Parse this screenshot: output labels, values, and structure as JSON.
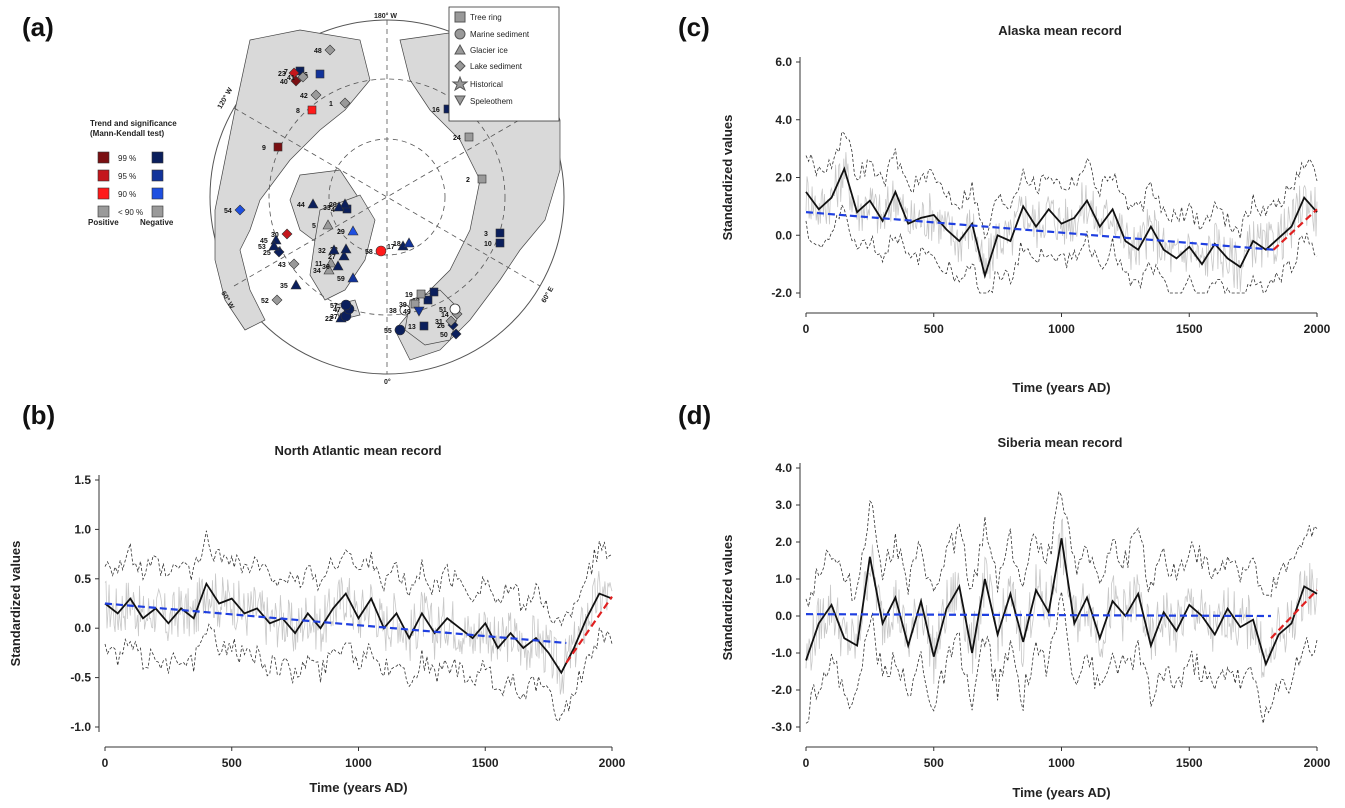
{
  "figure": {
    "panels": [
      {
        "id": "a",
        "letter": "(a)"
      },
      {
        "id": "b",
        "letter": "(b)"
      },
      {
        "id": "c",
        "letter": "(c)"
      },
      {
        "id": "d",
        "letter": "(d)"
      }
    ]
  },
  "map": {
    "legend_archive": [
      "Tree ring",
      "Marine sediment",
      "Glacier ice",
      "Lake sediment",
      "Historical",
      "Speleothem"
    ],
    "trend_legend": {
      "title_line1": "Trend and significance",
      "title_line2": "(Mann-Kendall test)",
      "levels": [
        "99 %",
        "95 %",
        "90 %",
        "< 90 %"
      ],
      "positive_label": "Positive",
      "negative_label": "Negative",
      "positive_colors": [
        "#7a0f12",
        "#c4161c",
        "#ff1a1a",
        "#9a9a9a"
      ],
      "negative_colors": [
        "#0b1f5c",
        "#12339a",
        "#1e4fe0",
        "#9a9a9a"
      ]
    },
    "meridian_labels": {
      "top": "180° W",
      "bottom": "0°",
      "left_upper": "120° W",
      "left_lower": "60° W",
      "right_lower": "60° E"
    },
    "sites": [
      {
        "n": "1",
        "type": "lake",
        "trend": "neg_ns"
      },
      {
        "n": "2",
        "type": "tree",
        "trend": "neg_ns"
      },
      {
        "n": "3",
        "type": "tree",
        "trend": "neg99"
      },
      {
        "n": "4",
        "type": "tree",
        "trend": "neg99"
      },
      {
        "n": "5",
        "type": "glacier",
        "trend": "neg_ns"
      },
      {
        "n": "6",
        "type": "tree",
        "trend": "neg95"
      },
      {
        "n": "7",
        "type": "tree",
        "trend": "neg99"
      },
      {
        "n": "8",
        "type": "tree",
        "trend": "pos90"
      },
      {
        "n": "9",
        "type": "tree",
        "trend": "pos99"
      },
      {
        "n": "10",
        "type": "tree",
        "trend": "neg99"
      },
      {
        "n": "11",
        "type": "glacier",
        "trend": "neg_ns"
      },
      {
        "n": "12",
        "type": "tree",
        "trend": "neg99"
      },
      {
        "n": "13",
        "type": "tree",
        "trend": "neg99"
      },
      {
        "n": "14",
        "type": "lake",
        "trend": "neg_ns"
      },
      {
        "n": "15",
        "type": "tree",
        "trend": "neg99"
      },
      {
        "n": "16",
        "type": "tree",
        "trend": "neg99"
      },
      {
        "n": "17",
        "type": "glacier",
        "trend": "neg99"
      },
      {
        "n": "18",
        "type": "glacier",
        "trend": "neg95"
      },
      {
        "n": "19",
        "type": "tree",
        "trend": "neg_ns"
      },
      {
        "n": "20",
        "type": "glacier",
        "trend": "neg99"
      },
      {
        "n": "22",
        "type": "glacier",
        "trend": "neg99"
      },
      {
        "n": "23",
        "type": "lake",
        "trend": "pos95"
      },
      {
        "n": "24",
        "type": "tree",
        "trend": "neg_ns"
      },
      {
        "n": "25",
        "type": "lake",
        "trend": "neg99"
      },
      {
        "n": "26",
        "type": "lake",
        "trend": "neg99"
      },
      {
        "n": "27",
        "type": "glacier",
        "trend": "neg99"
      },
      {
        "n": "28",
        "type": "glacier",
        "trend": "neg99"
      },
      {
        "n": "29",
        "type": "glacier",
        "trend": "neg90"
      },
      {
        "n": "30",
        "type": "lake",
        "trend": "pos95"
      },
      {
        "n": "31",
        "type": "lake",
        "trend": "neg_ns"
      },
      {
        "n": "32",
        "type": "glacier",
        "trend": "neg99"
      },
      {
        "n": "33",
        "type": "glacier",
        "trend": "neg99"
      },
      {
        "n": "34",
        "type": "glacier",
        "trend": "neg_ns"
      },
      {
        "n": "35",
        "type": "glacier",
        "trend": "neg99"
      },
      {
        "n": "36",
        "type": "glacier",
        "trend": "neg99"
      },
      {
        "n": "37",
        "type": "marine",
        "trend": "neg99"
      },
      {
        "n": "38",
        "type": "historical",
        "trend": "neg_ns"
      },
      {
        "n": "39",
        "type": "tree",
        "trend": "neg_ns"
      },
      {
        "n": "40",
        "type": "lake",
        "trend": "pos99"
      },
      {
        "n": "41",
        "type": "lake",
        "trend": "neg_ns"
      },
      {
        "n": "42",
        "type": "lake",
        "trend": "neg_ns"
      },
      {
        "n": "43",
        "type": "lake",
        "trend": "neg_ns"
      },
      {
        "n": "44",
        "type": "glacier",
        "trend": "neg99"
      },
      {
        "n": "45",
        "type": "glacier",
        "trend": "neg99"
      },
      {
        "n": "47",
        "type": "marine",
        "trend": "neg99"
      },
      {
        "n": "48",
        "type": "lake",
        "trend": "neg_ns"
      },
      {
        "n": "49",
        "type": "speleothem",
        "trend": "neg95"
      },
      {
        "n": "50",
        "type": "lake",
        "trend": "neg99"
      },
      {
        "n": "51",
        "type": "historical",
        "trend": "neg_ns"
      },
      {
        "n": "52",
        "type": "lake",
        "trend": "neg_ns"
      },
      {
        "n": "53",
        "type": "glacier",
        "trend": "neg99"
      },
      {
        "n": "54",
        "type": "lake",
        "trend": "neg90"
      },
      {
        "n": "55",
        "type": "marine",
        "trend": "neg99"
      },
      {
        "n": "57",
        "type": "marine",
        "trend": "neg99"
      },
      {
        "n": "58",
        "type": "marine",
        "trend": "pos90"
      },
      {
        "n": "59",
        "type": "glacier",
        "trend": "neg95"
      }
    ]
  },
  "chart_data": [
    {
      "panel": "b",
      "type": "line",
      "title": "North Atlantic mean record",
      "xlabel": "Time (years AD)",
      "ylabel": "Standardized values",
      "xlim": [
        0,
        2000
      ],
      "ylim": [
        -1.0,
        1.5
      ],
      "xticks": [
        "0",
        "500",
        "1000",
        "1500",
        "2000"
      ],
      "yticks": [
        "-1.0",
        "-0.5",
        "0.0",
        "0.5",
        "1.0",
        "1.5"
      ],
      "yticks_values": [
        -1.0,
        -0.5,
        0.0,
        0.5,
        1.0,
        1.5
      ],
      "smooth": {
        "x": [
          0,
          50,
          100,
          150,
          200,
          250,
          300,
          350,
          400,
          450,
          500,
          550,
          600,
          650,
          700,
          750,
          800,
          850,
          900,
          950,
          1000,
          1050,
          1100,
          1150,
          1200,
          1250,
          1300,
          1350,
          1400,
          1450,
          1500,
          1550,
          1600,
          1650,
          1700,
          1750,
          1800,
          1850,
          1900,
          1950,
          2000
        ],
        "y": [
          0.25,
          0.15,
          0.3,
          0.1,
          0.2,
          0.05,
          0.2,
          0.1,
          0.45,
          0.25,
          0.3,
          0.15,
          0.2,
          0.05,
          0.1,
          -0.05,
          0.15,
          0.0,
          0.2,
          0.35,
          0.1,
          0.3,
          0.0,
          0.15,
          -0.1,
          0.15,
          -0.05,
          0.1,
          0.0,
          -0.1,
          0.05,
          -0.2,
          -0.05,
          -0.2,
          -0.1,
          -0.25,
          -0.45,
          -0.2,
          0.1,
          0.35,
          0.3
        ]
      },
      "trend": {
        "x": [
          0,
          1820
        ],
        "y": [
          0.25,
          -0.15
        ]
      },
      "recent_trend": {
        "x": [
          1820,
          2000
        ],
        "y": [
          -0.35,
          0.32
        ]
      },
      "envelope_offset": 0.45
    },
    {
      "panel": "c",
      "type": "line",
      "title": "Alaska mean record",
      "xlabel": "Time (years AD)",
      "ylabel": "Standardized values",
      "xlim": [
        0,
        2000
      ],
      "ylim": [
        -2.0,
        6.0
      ],
      "xticks": [
        "0",
        "500",
        "1000",
        "1500",
        "2000"
      ],
      "yticks": [
        "-2.0",
        "0.0",
        "2.0",
        "4.0",
        "6.0"
      ],
      "yticks_values": [
        -2.0,
        0.0,
        2.0,
        4.0,
        6.0
      ],
      "smooth": {
        "x": [
          0,
          50,
          100,
          150,
          200,
          250,
          300,
          350,
          400,
          450,
          500,
          550,
          600,
          650,
          700,
          750,
          800,
          850,
          900,
          950,
          1000,
          1050,
          1100,
          1150,
          1200,
          1250,
          1300,
          1350,
          1400,
          1450,
          1500,
          1550,
          1600,
          1650,
          1700,
          1750,
          1800,
          1850,
          1900,
          1950,
          2000
        ],
        "y": [
          1.5,
          0.9,
          1.3,
          2.3,
          0.8,
          1.2,
          0.5,
          1.5,
          0.4,
          0.6,
          0.7,
          0.2,
          -0.2,
          0.4,
          -1.4,
          0.0,
          -0.2,
          1.0,
          0.3,
          0.9,
          0.4,
          0.6,
          1.2,
          0.3,
          0.9,
          -0.2,
          -0.5,
          0.3,
          -0.5,
          -0.8,
          -0.4,
          -1.0,
          -0.3,
          -0.8,
          -1.1,
          -0.2,
          -0.5,
          -0.1,
          0.3,
          1.3,
          0.8
        ]
      },
      "trend": {
        "x": [
          0,
          1830
        ],
        "y": [
          0.8,
          -0.5
        ]
      },
      "recent_trend": {
        "x": [
          1830,
          2000
        ],
        "y": [
          -0.5,
          0.9
        ]
      },
      "envelope_offset": 1.3
    },
    {
      "panel": "d",
      "type": "line",
      "title": "Siberia mean record",
      "xlabel": "Time (years AD)",
      "ylabel": "Standardized values",
      "xlim": [
        0,
        2000
      ],
      "ylim": [
        -3.0,
        4.0
      ],
      "xticks": [
        "0",
        "500",
        "1000",
        "1500",
        "2000"
      ],
      "yticks": [
        "-3.0",
        "-2.0",
        "-1.0",
        "0.0",
        "1.0",
        "2.0",
        "3.0",
        "4.0"
      ],
      "yticks_values": [
        -3.0,
        -2.0,
        -1.0,
        0.0,
        1.0,
        2.0,
        3.0,
        4.0
      ],
      "smooth": {
        "x": [
          0,
          50,
          100,
          150,
          200,
          250,
          300,
          350,
          400,
          450,
          500,
          550,
          600,
          650,
          700,
          750,
          800,
          850,
          900,
          950,
          1000,
          1050,
          1100,
          1150,
          1200,
          1250,
          1300,
          1350,
          1400,
          1450,
          1500,
          1550,
          1600,
          1650,
          1700,
          1750,
          1800,
          1850,
          1900,
          1950,
          2000
        ],
        "y": [
          -1.2,
          -0.2,
          0.3,
          -0.6,
          -0.8,
          1.6,
          -0.2,
          0.5,
          -0.8,
          0.4,
          -1.1,
          0.2,
          0.8,
          -1.0,
          1.0,
          -0.5,
          0.6,
          -0.7,
          0.7,
          0.1,
          2.1,
          -0.2,
          0.5,
          -0.6,
          0.4,
          0.0,
          0.6,
          -0.8,
          0.1,
          -0.4,
          0.3,
          0.0,
          -0.5,
          0.2,
          -0.3,
          -0.1,
          -1.3,
          -0.5,
          -0.2,
          0.8,
          0.6
        ]
      },
      "trend": {
        "x": [
          0,
          1820
        ],
        "y": [
          0.05,
          0.0
        ]
      },
      "recent_trend": {
        "x": [
          1820,
          2000
        ],
        "y": [
          -0.6,
          0.7
        ]
      },
      "envelope_offset": 1.5
    }
  ]
}
